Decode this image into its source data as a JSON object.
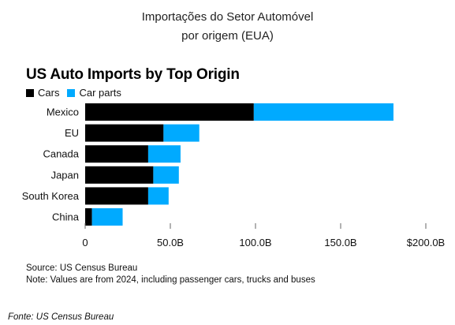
{
  "header": {
    "line1": "Importações do Setor Automóvel",
    "line2": "por origem (EUA)"
  },
  "footer": "Fonte: US Census Bureau",
  "chart_data": {
    "type": "bar",
    "orientation": "horizontal",
    "stacked": true,
    "title": "US Auto Imports by Top Origin",
    "legend_position": "top-left",
    "categories": [
      "Mexico",
      "EU",
      "Canada",
      "Japan",
      "South Korea",
      "China"
    ],
    "series": [
      {
        "name": "Cars",
        "color": "#000000",
        "values": [
          99,
          46,
          37,
          40,
          37,
          4
        ]
      },
      {
        "name": "Car parts",
        "color": "#00aaff",
        "values": [
          82,
          21,
          19,
          15,
          12,
          18
        ]
      }
    ],
    "xlim": [
      0,
      200
    ],
    "xticks": [
      0,
      50,
      100,
      150,
      200
    ],
    "xtick_labels": [
      "0",
      "50.0B",
      "100.0B",
      "150.0B",
      "$200.0B"
    ],
    "grid": false,
    "source": "Source: US Census Bureau",
    "note": "Note: Values are from 2024, including passenger cars, trucks and buses"
  }
}
